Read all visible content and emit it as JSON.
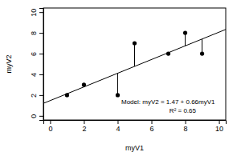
{
  "chart_data": {
    "type": "scatter",
    "x": [
      1,
      2,
      4,
      5,
      7,
      8,
      9
    ],
    "values": [
      2,
      3,
      2,
      7,
      6,
      8,
      6
    ],
    "xlabel": "myV1",
    "ylabel": "myV2",
    "xlim": [
      -0.4,
      10.4
    ],
    "ylim": [
      -0.4,
      10.4
    ],
    "xticks": [
      0,
      2,
      4,
      6,
      8,
      10
    ],
    "yticks": [
      0,
      2,
      4,
      6,
      8,
      10
    ],
    "fit": {
      "intercept": 1.47,
      "slope": 0.66
    },
    "annotations": [
      "Model: myV2 = 1.47 + 0.66myV1",
      "R² = 0.65"
    ],
    "marker": "circle",
    "color": "#000000"
  }
}
